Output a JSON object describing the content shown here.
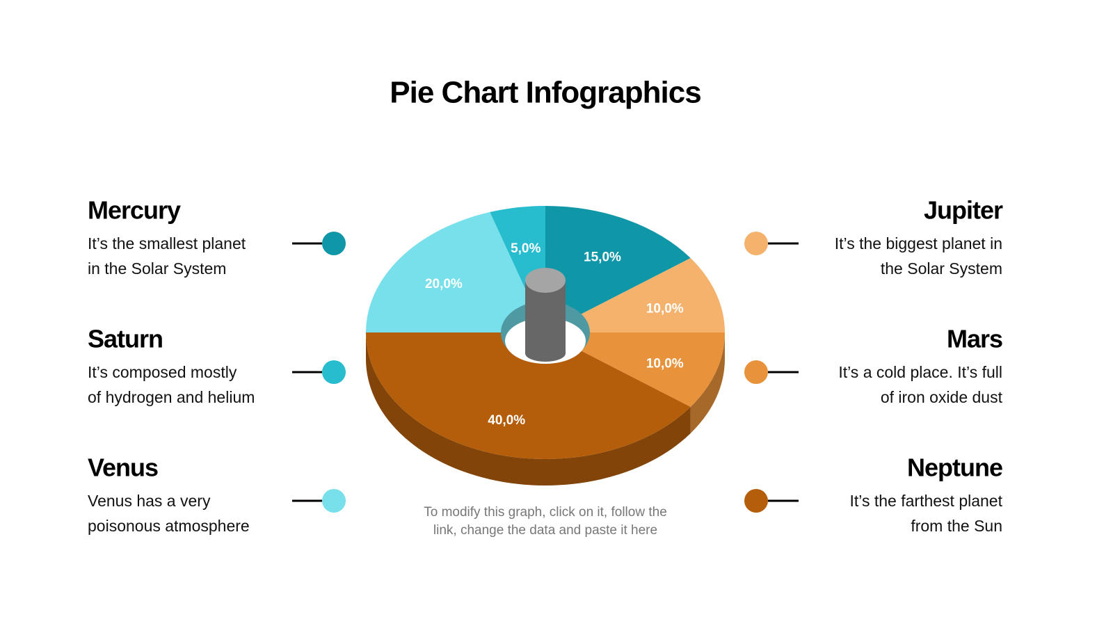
{
  "chart_data": {
    "type": "pie",
    "title": "Pie Chart Infographics",
    "note": [
      "To modify this graph, click on it, follow the",
      "link, change the data and paste it here"
    ],
    "categories": [
      "Mercury",
      "Jupiter",
      "Mars",
      "Neptune",
      "Venus",
      "Saturn"
    ],
    "values": [
      15,
      10,
      10,
      40,
      20,
      5
    ],
    "value_labels": [
      "15,0%",
      "10,0%",
      "10,0%",
      "40,0%",
      "20,0%",
      "5,0%"
    ],
    "colors": [
      "#0f97a8",
      "#f5b26c",
      "#e8923b",
      "#b45e0b",
      "#77e0ea",
      "#28bccf"
    ],
    "descriptions": [
      [
        "It’s the smallest planet",
        "in the Solar System"
      ],
      [
        "It’s the biggest planet in",
        "the Solar System"
      ],
      [
        "It’s a cold place. It’s full",
        "of iron oxide dust"
      ],
      [
        "It’s the farthest planet",
        "from the Sun"
      ],
      [
        "Venus has a very",
        "poisonous atmosphere"
      ],
      [
        "It’s composed mostly",
        "of hydrogen and helium"
      ]
    ]
  }
}
